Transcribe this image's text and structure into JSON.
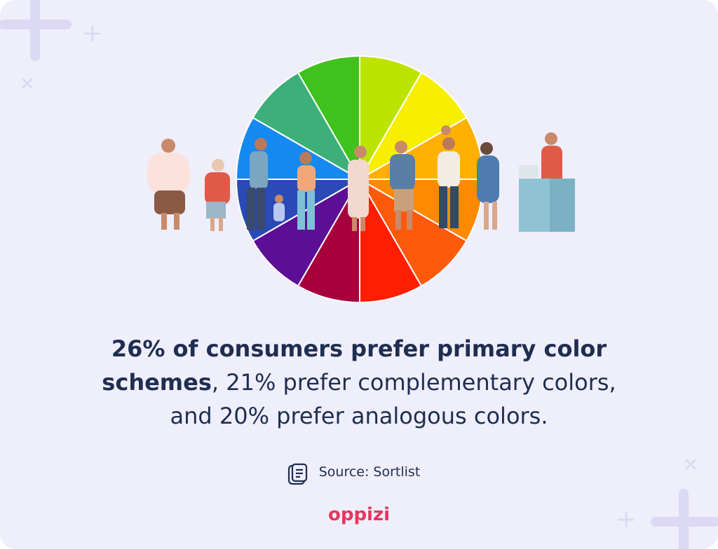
{
  "headline": {
    "bold": "26% of consumers prefer primary color schemes",
    "rest": ", 21% prefer complementary colors, and 20% prefer analogous colors."
  },
  "source": "Source: Sortlist",
  "brand": "oppizi"
}
